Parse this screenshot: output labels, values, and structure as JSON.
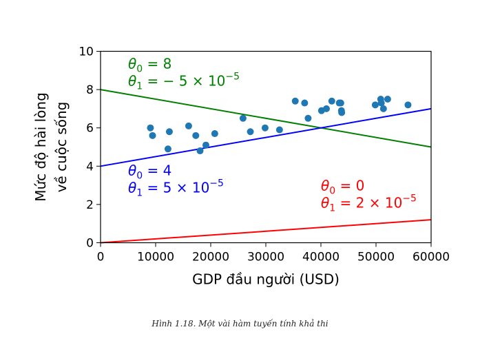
{
  "caption": "Hình 1.18. Một vài hàm tuyến tính khả thi",
  "chart_data": {
    "type": "scatter",
    "xlabel": "GDP đầu người (USD)",
    "ylabel_lines": [
      "Mức độ hài lòng",
      "về cuộc sống"
    ],
    "xlim": [
      0,
      60000
    ],
    "ylim": [
      0,
      10
    ],
    "x_ticks": [
      0,
      10000,
      20000,
      30000,
      40000,
      50000,
      60000
    ],
    "x_tick_labels": [
      "0",
      "10000",
      "20000",
      "30000",
      "40000",
      "50000",
      "60000"
    ],
    "y_ticks": [
      0,
      2,
      4,
      6,
      8,
      10
    ],
    "y_tick_labels": [
      "0",
      "2",
      "4",
      "6",
      "8",
      "10"
    ],
    "grid": false,
    "points_color": "#1f77b4",
    "points": [
      {
        "x": 9054,
        "y": 6.0
      },
      {
        "x": 9437,
        "y": 5.6
      },
      {
        "x": 12240,
        "y": 4.9
      },
      {
        "x": 12495,
        "y": 5.8
      },
      {
        "x": 15991,
        "y": 6.1
      },
      {
        "x": 17288,
        "y": 5.6
      },
      {
        "x": 18064,
        "y": 4.8
      },
      {
        "x": 19121,
        "y": 5.1
      },
      {
        "x": 20732,
        "y": 5.7
      },
      {
        "x": 25864,
        "y": 6.5
      },
      {
        "x": 27195,
        "y": 5.8
      },
      {
        "x": 29866,
        "y": 6.0
      },
      {
        "x": 32485,
        "y": 5.9
      },
      {
        "x": 35343,
        "y": 7.4
      },
      {
        "x": 37044,
        "y": 7.3
      },
      {
        "x": 37675,
        "y": 6.5
      },
      {
        "x": 40106,
        "y": 6.9
      },
      {
        "x": 40996,
        "y": 7.0
      },
      {
        "x": 41973,
        "y": 7.4
      },
      {
        "x": 43331,
        "y": 7.3
      },
      {
        "x": 43603,
        "y": 7.3
      },
      {
        "x": 43724,
        "y": 6.9
      },
      {
        "x": 43770,
        "y": 6.8
      },
      {
        "x": 49866,
        "y": 7.2
      },
      {
        "x": 50854,
        "y": 7.5
      },
      {
        "x": 50962,
        "y": 7.3
      },
      {
        "x": 51350,
        "y": 7.0
      },
      {
        "x": 52114,
        "y": 7.5
      },
      {
        "x": 55805,
        "y": 7.2
      }
    ],
    "lines": [
      {
        "theta0": 0,
        "theta1": 2e-05,
        "color": "#ff0000",
        "label_theta0": "0",
        "label_theta1_coef": "2",
        "label_exp": "−5",
        "label_sign": ""
      },
      {
        "theta0": 8,
        "theta1": -5e-05,
        "color": "#008000",
        "label_theta0": "8",
        "label_theta1_coef": "5",
        "label_exp": "−5",
        "label_sign": "−"
      },
      {
        "theta0": 4,
        "theta1": 5e-05,
        "color": "#0000ff",
        "label_theta0": "4",
        "label_theta1_coef": "5",
        "label_exp": "−5",
        "label_sign": ""
      }
    ]
  }
}
